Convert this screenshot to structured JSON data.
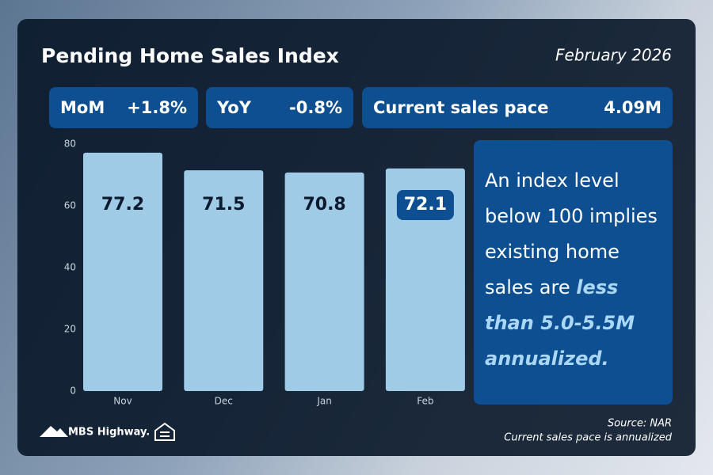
{
  "chart_data": {
    "type": "bar",
    "title": "Pending Home Sales Index",
    "subtitle": "February 2026",
    "categories": [
      "Nov",
      "Dec",
      "Jan",
      "Feb"
    ],
    "values": [
      77.2,
      71.5,
      70.8,
      72.1
    ],
    "color": "#9fcbe6",
    "ylim": [
      0,
      80
    ],
    "yticks": [
      0,
      20,
      40,
      60,
      80
    ],
    "grid": false
  },
  "stats": [
    {
      "label": "MoM",
      "value": "+1.8%"
    },
    {
      "label": "YoY",
      "value": "-0.8%"
    },
    {
      "label": "Current sales pace",
      "value": "4.09M"
    }
  ],
  "callout": {
    "text": "An index level below 100 implies existing home sales are ",
    "emphasis": "less than 5.0-5.5M annualized."
  },
  "footer": {
    "source": "Source: NAR",
    "note": "Current sales pace is annualized",
    "brand": "MBS Highway."
  }
}
